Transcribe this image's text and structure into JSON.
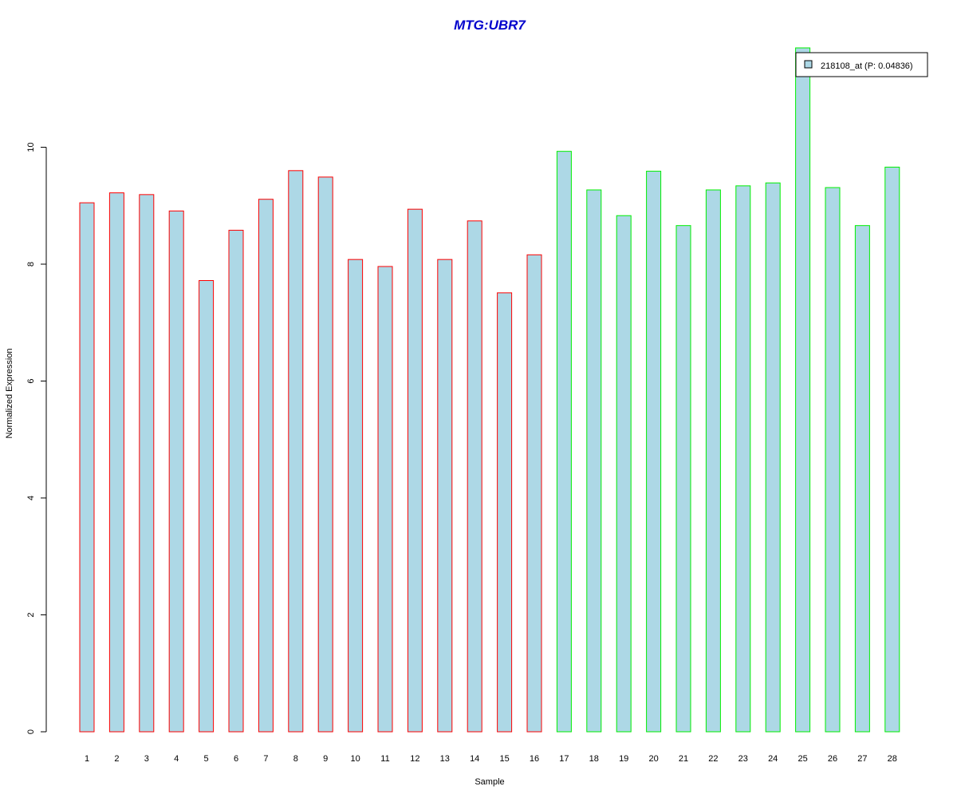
{
  "chart_data": {
    "type": "bar",
    "title": "MTG:UBR7",
    "xlabel": "Sample",
    "ylabel": "Normalized Expression",
    "categories": [
      "1",
      "2",
      "3",
      "4",
      "5",
      "6",
      "7",
      "8",
      "9",
      "10",
      "11",
      "12",
      "13",
      "14",
      "15",
      "16",
      "17",
      "18",
      "19",
      "20",
      "21",
      "22",
      "23",
      "24",
      "25",
      "26",
      "27",
      "28"
    ],
    "series": [
      {
        "name": "218108_at (P: 0.04836)",
        "values": [
          9.05,
          9.22,
          9.19,
          8.91,
          7.72,
          8.58,
          9.11,
          9.6,
          9.49,
          8.08,
          7.96,
          8.94,
          8.08,
          8.74,
          7.51,
          8.16,
          9.93,
          9.27,
          8.83,
          9.59,
          8.66,
          9.27,
          9.34,
          9.39,
          11.7,
          9.31,
          8.66,
          9.66
        ]
      }
    ],
    "groups": [
      {
        "range": [
          1,
          16
        ],
        "border_color": "#ff0000"
      },
      {
        "range": [
          17,
          28
        ],
        "border_color": "#00ee00"
      }
    ],
    "ylim": [
      0,
      11.7
    ],
    "yticks": [
      "0",
      "2",
      "4",
      "6",
      "8",
      "10"
    ],
    "grid": false,
    "legend_position": "top-right",
    "colors": {
      "bar_fill": "#add8e6",
      "title": "#0000cc",
      "axis": "#000000"
    }
  }
}
